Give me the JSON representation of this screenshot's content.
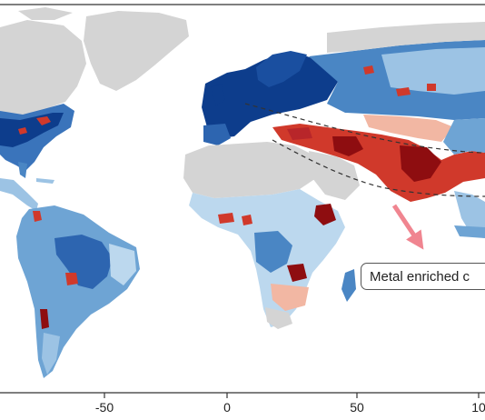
{
  "map": {
    "x_axis_ticks": [
      "-50",
      "0",
      "50",
      "10"
    ],
    "annotation": "Metal enriched c",
    "colors": {
      "land_no_data": "#d4d4d4",
      "ocean": "#ffffff",
      "low_dark_blue": "#0d3d8c",
      "low_blue": "#4a86c4",
      "low_light_blue": "#bcd8ee",
      "high_light_red": "#f2b7a3",
      "high_red": "#d0392b",
      "high_dark_red": "#8e0d10",
      "arrow": "#f08590",
      "dashed_line": "#333333"
    }
  }
}
